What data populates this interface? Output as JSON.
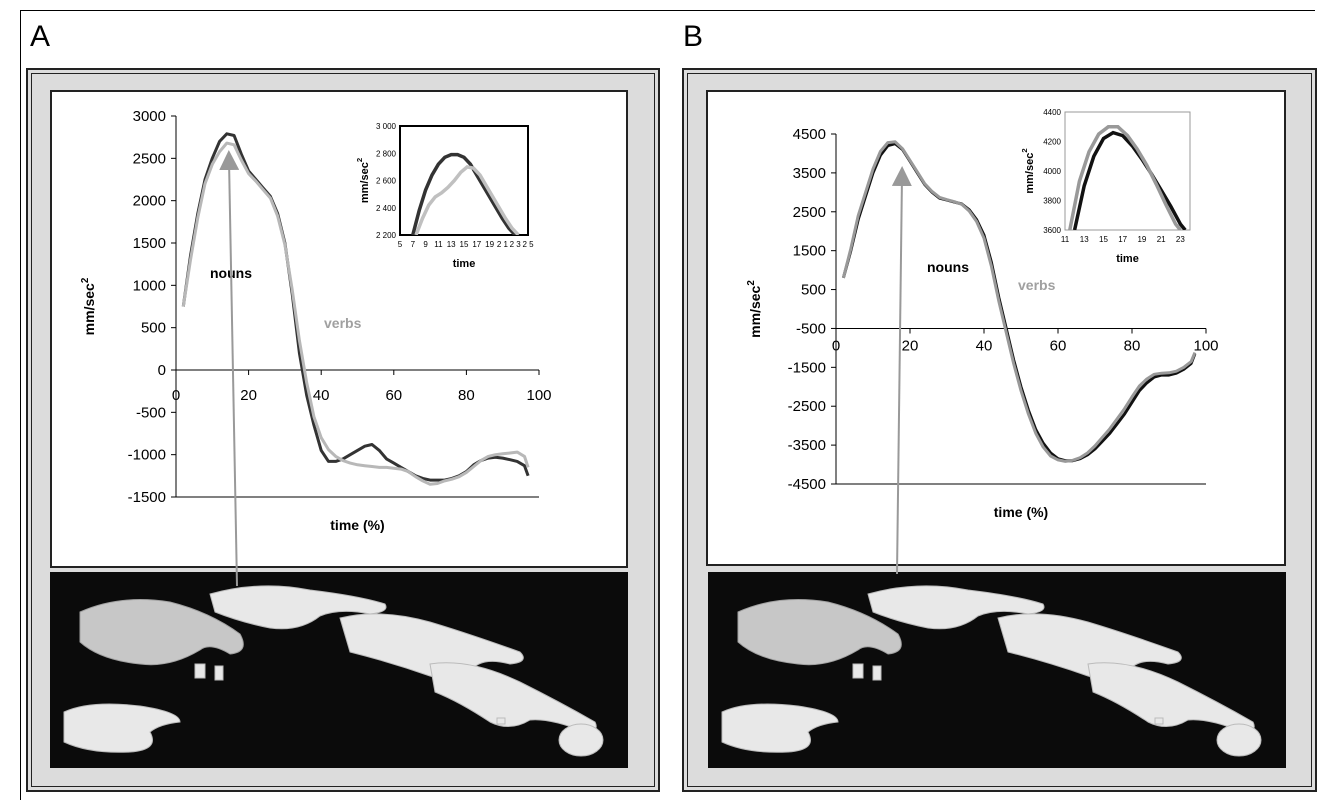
{
  "panels": [
    {
      "letter": "A"
    },
    {
      "letter": "B"
    }
  ],
  "chart_data": [
    {
      "panel": "A",
      "type": "line",
      "xlabel": "time (%)",
      "ylabel": "mm/sec2",
      "xlim": [
        0,
        100
      ],
      "ylim": [
        -1500,
        3000
      ],
      "xticks": [
        0,
        20,
        40,
        60,
        80,
        100
      ],
      "yticks": [
        -1500,
        -1000,
        -500,
        0,
        500,
        1000,
        1500,
        2000,
        2500,
        3000
      ],
      "annotations": [
        "nouns",
        "verbs"
      ],
      "series": [
        {
          "name": "nouns",
          "color": "#333333",
          "x": [
            2,
            4,
            6,
            8,
            10,
            12,
            14,
            16,
            18,
            20,
            22,
            24,
            26,
            28,
            30,
            32,
            34,
            36,
            38,
            40,
            42,
            44,
            46,
            48,
            50,
            52,
            54,
            56,
            58,
            60,
            62,
            64,
            66,
            68,
            70,
            72,
            74,
            76,
            78,
            80,
            82,
            84,
            86,
            88,
            90,
            92,
            94,
            96,
            97
          ],
          "y": [
            750,
            1350,
            1850,
            2250,
            2500,
            2700,
            2790,
            2770,
            2550,
            2350,
            2250,
            2150,
            2050,
            1850,
            1500,
            900,
            200,
            -300,
            -650,
            -950,
            -1080,
            -1080,
            -1050,
            -1000,
            -950,
            -900,
            -880,
            -950,
            -1050,
            -1100,
            -1150,
            -1200,
            -1250,
            -1280,
            -1300,
            -1300,
            -1300,
            -1280,
            -1250,
            -1200,
            -1120,
            -1070,
            -1040,
            -1030,
            -1040,
            -1060,
            -1080,
            -1130,
            -1250
          ]
        },
        {
          "name": "verbs",
          "color": "#b8b8b8",
          "x": [
            2,
            4,
            6,
            8,
            10,
            12,
            14,
            16,
            18,
            20,
            22,
            24,
            26,
            28,
            30,
            32,
            34,
            36,
            38,
            40,
            42,
            44,
            46,
            48,
            50,
            52,
            54,
            56,
            58,
            60,
            62,
            64,
            66,
            68,
            70,
            72,
            74,
            76,
            78,
            80,
            82,
            84,
            86,
            88,
            90,
            92,
            94,
            96,
            97
          ],
          "y": [
            750,
            1300,
            1800,
            2200,
            2430,
            2580,
            2680,
            2660,
            2480,
            2320,
            2230,
            2130,
            2030,
            1820,
            1480,
            950,
            350,
            -150,
            -550,
            -800,
            -940,
            -1020,
            -1070,
            -1100,
            -1120,
            -1130,
            -1140,
            -1150,
            -1150,
            -1160,
            -1170,
            -1200,
            -1260,
            -1310,
            -1350,
            -1340,
            -1310,
            -1290,
            -1260,
            -1210,
            -1140,
            -1070,
            -1020,
            -1000,
            -990,
            -980,
            -970,
            -1020,
            -1150
          ]
        }
      ],
      "inset": {
        "xlabel": "time",
        "ylabel": "mm/sec2",
        "xlim": [
          5,
          25
        ],
        "ylim": [
          2200,
          3000
        ],
        "xticks": [
          5,
          7,
          9,
          11,
          13,
          15,
          17,
          19,
          21,
          23,
          25
        ],
        "yticks": [
          2200,
          2400,
          2600,
          2800,
          3000
        ],
        "xtick_labels": [
          "5",
          "7",
          "9",
          "11",
          "13",
          "15",
          "17",
          "19",
          "2 1",
          "2 3",
          "2 5"
        ],
        "ytick_labels": [
          "2 200",
          "2 400",
          "2 600",
          "2 800",
          "3 000"
        ],
        "series": [
          {
            "name": "nouns",
            "color": "#333333",
            "x": [
              7,
              8,
              9,
              10,
              11,
              12,
              13,
              14,
              15,
              16,
              17,
              18,
              19,
              20,
              21,
              22,
              23
            ],
            "y": [
              2200,
              2380,
              2530,
              2640,
              2720,
              2770,
              2790,
              2790,
              2770,
              2720,
              2640,
              2560,
              2480,
              2400,
              2320,
              2250,
              2200
            ]
          },
          {
            "name": "verbs",
            "color": "#c0c0c0",
            "x": [
              7.5,
              8.5,
              9.5,
              10.5,
              11.5,
              12.5,
              13.5,
              14.5,
              15.5,
              16.5,
              17.5,
              18.5,
              19.5,
              20.5,
              21.5,
              22.5,
              23.5
            ],
            "y": [
              2200,
              2320,
              2420,
              2480,
              2510,
              2550,
              2600,
              2660,
              2700,
              2690,
              2640,
              2560,
              2480,
              2400,
              2320,
              2250,
              2200
            ]
          }
        ]
      }
    },
    {
      "panel": "B",
      "type": "line",
      "xlabel": "time (%)",
      "ylabel": "mm/sec2",
      "xlim": [
        0,
        100
      ],
      "ylim": [
        -4500,
        4500
      ],
      "xticks": [
        0,
        20,
        40,
        60,
        80,
        100
      ],
      "yticks": [
        -4500,
        -3500,
        -2500,
        -1500,
        -500,
        500,
        1500,
        2500,
        3500,
        4500
      ],
      "annotations": [
        "nouns",
        "verbs"
      ],
      "series": [
        {
          "name": "nouns",
          "color": "#111111",
          "x": [
            2,
            4,
            6,
            8,
            10,
            12,
            14,
            16,
            18,
            20,
            22,
            24,
            26,
            28,
            30,
            32,
            34,
            36,
            38,
            40,
            42,
            44,
            46,
            48,
            50,
            52,
            54,
            56,
            58,
            60,
            62,
            64,
            66,
            68,
            70,
            72,
            74,
            76,
            78,
            80,
            82,
            84,
            86,
            88,
            90,
            92,
            94,
            96,
            97
          ],
          "y": [
            800,
            1500,
            2300,
            2900,
            3500,
            3950,
            4200,
            4250,
            4100,
            3800,
            3500,
            3200,
            3000,
            2850,
            2800,
            2750,
            2700,
            2550,
            2300,
            1900,
            1200,
            300,
            -500,
            -1300,
            -2000,
            -2600,
            -3100,
            -3450,
            -3700,
            -3850,
            -3900,
            -3900,
            -3850,
            -3750,
            -3600,
            -3400,
            -3200,
            -2950,
            -2700,
            -2400,
            -2100,
            -1900,
            -1750,
            -1700,
            -1700,
            -1650,
            -1550,
            -1400,
            -1150
          ]
        },
        {
          "name": "verbs",
          "color": "#999999",
          "x": [
            2,
            4,
            6,
            8,
            10,
            12,
            14,
            16,
            18,
            20,
            22,
            24,
            26,
            28,
            30,
            32,
            34,
            36,
            38,
            40,
            42,
            44,
            46,
            48,
            50,
            52,
            54,
            56,
            58,
            60,
            62,
            64,
            66,
            68,
            70,
            72,
            74,
            76,
            78,
            80,
            82,
            84,
            86,
            88,
            90,
            92,
            94,
            96,
            97
          ],
          "y": [
            800,
            1550,
            2400,
            3000,
            3600,
            4050,
            4280,
            4300,
            4120,
            3820,
            3520,
            3220,
            3020,
            2870,
            2810,
            2760,
            2690,
            2520,
            2250,
            1820,
            1100,
            200,
            -600,
            -1400,
            -2100,
            -2700,
            -3200,
            -3550,
            -3780,
            -3880,
            -3920,
            -3890,
            -3820,
            -3700,
            -3520,
            -3300,
            -3080,
            -2820,
            -2560,
            -2260,
            -1980,
            -1800,
            -1680,
            -1650,
            -1640,
            -1600,
            -1500,
            -1350,
            -1120
          ]
        }
      ],
      "inset": {
        "xlabel": "time",
        "ylabel": "mm/sec2",
        "xlim": [
          11,
          24
        ],
        "ylim": [
          3600,
          4400
        ],
        "xticks": [
          11,
          13,
          15,
          17,
          19,
          21,
          23
        ],
        "yticks": [
          3600,
          3800,
          4000,
          4200,
          4400
        ],
        "xtick_labels": [
          "11",
          "13",
          "15",
          "17",
          "19",
          "21",
          "23"
        ],
        "ytick_labels": [
          "3600",
          "3800",
          "4000",
          "4200",
          "4400"
        ],
        "series": [
          {
            "name": "nouns",
            "color": "#111111",
            "x": [
              12,
              13,
              14,
              15,
              16,
              17,
              18,
              19,
              20,
              21,
              22,
              23,
              23.5
            ],
            "y": [
              3600,
              3900,
              4100,
              4220,
              4260,
              4240,
              4170,
              4080,
              3980,
              3870,
              3760,
              3640,
              3600
            ]
          },
          {
            "name": "verbs",
            "color": "#999999",
            "x": [
              11.5,
              12.5,
              13.5,
              14.5,
              15.5,
              16.5,
              17.5,
              18.5,
              19.5,
              20.5,
              21.5,
              22.5,
              23
            ],
            "y": [
              3600,
              3930,
              4130,
              4250,
              4300,
              4300,
              4240,
              4150,
              4040,
              3910,
              3770,
              3640,
              3600
            ]
          }
        ]
      }
    }
  ]
}
